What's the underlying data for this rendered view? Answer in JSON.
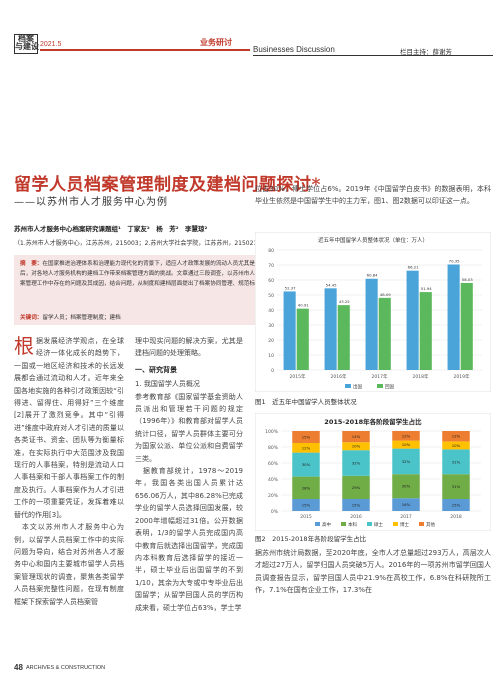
{
  "header": {
    "logo_text": "档案\n与建设",
    "date": "2021.5",
    "column_name": "业务研讨",
    "column_en": "Businesses Discussion",
    "editor": "栏目主持：薛谢芳"
  },
  "article": {
    "title": "留学人员档案管理制度及建档问题探讨*",
    "subtitle": "——以苏州市人才服务中心为例",
    "authors": "苏州市人才服务中心档案研究课题组¹　丁家友²　杨　芳²　李慧琼²",
    "affiliation": "（1.苏州市人才服务中心，江苏苏州，215003；2.苏州大学社会学院，江苏苏州，215021）",
    "abstract_label": "摘　要：",
    "abstract": "在国家推进治理体系和治理能力现代化的背景下，适应人才政策发展的流动人员尤其是留学人员档案管理制度建设相对滞后，对各地人才服务机构的建档工作带来档案管理方面的挑战。文章通过三段调查，以苏州市人才服务中心为例，分析了留学人员档案管理工作中存在的问题及其成因，结合问题，从制度和建档层面提出了档案协同管理、规范标准建设与管理流程优化等对策。",
    "keywords_label": "关键词：",
    "keywords": "留学人员；档案管理制度；建档",
    "col1_dropcap": "根",
    "col1_text": "据发展经济学观点，在全球经济一体化成长的趋势下，一国或一地区经济和技术的长远发展都会通过流动和人才。近年来全国各地实施的各种引才政策因较“引得进、留得住、用得好”三个维度[2]展开了激烈竞争。其中“引得进”维度中政府对人才引进的质量以各类证书、资金、团队等为衡量标准，在实际执行中大范围涉及我国现行的人事档案，特别是流动人口人事档案和干部人事档案工作的制度及执行。人事档案作为人才引进工作的一项重要凭证，发挥着难以替代的作用[3]。\n　本文以苏州市人才服务中心为例，以留学人员档案工作中的实际问题为导向，结合对苏州各人才服务中心和国内主要城市留学人员档案管理现状的调查，聚焦各类留学人员档案完整性问题，在现有制度框架下探索留学人员档案管",
    "col2_text": "理中现实问题的解决方案，尤其是建档问题的处理策略。",
    "section1": "一、研究背景",
    "sub1": "1. 我国留学人员概况",
    "col2_text2": "参考教育部《国家留学基金资助人员派出和管理若干问题的规定（1996年）》和教育部对留学人员统计口径，留学人员群体主要可分为国家公派、单位公派和自费留学三类。\n　据教育部统计，1978～2019年，我国各类出国人员累计达656.06万人，其中86.28%已完成学业的留学人员选择回国发展，较2000年增幅超过31倍。公开数据表明，1/3的留学人员完成国内高中教育后就选择出国留学，完成国内本科教育后选择留学的接近一半，硕士毕业后出国留学的不到1/10，其余为大专或中专毕业后出国留学；从留学回国人员的学历构成来看，硕士学位占63%，学士学",
    "col3_text": "位占30%，博士学位占6%。2019年《中国留学白皮书》的数据表明，本科毕业生依然是中国留学生中的主力军，图1、图2数据可以印证这一点。",
    "fig1_caption": "图1　近五年中国留学人员整体状况",
    "fig2_caption": "图2　2015-2018年各阶段留学生占比",
    "col3b_text": "据苏州市统计局数据，至2020年底，全市人才总量超过293万人，高层次人才超过27万人，留学归国人员突破5万人。2016年的一项苏州市留学回国人员调查报告显示，留学回国人员中21.9%在高校工作，6.8%在科研院所工作，7.1%在国有企业工作，17.3%在"
  },
  "footer": {
    "page": "48",
    "label": "ARCHIVES & CONSTRUCTION"
  },
  "chart_data": [
    {
      "type": "bar",
      "title": "近五年中国留学人员整体状况（单位：万人）",
      "categories": [
        "2015年",
        "2016年",
        "2017年",
        "2018年",
        "2019年"
      ],
      "series": [
        {
          "name": "出国",
          "values": [
            52.37,
            54.45,
            60.84,
            66.21,
            70.35
          ]
        },
        {
          "name": "回国",
          "values": [
            40.91,
            43.25,
            48.09,
            51.94,
            58.03
          ]
        }
      ],
      "ylim": [
        0,
        80
      ],
      "colors": [
        "#4aa4d9",
        "#5cb85c"
      ]
    },
    {
      "type": "bar",
      "title": "2015-2018年各阶段留学生占比",
      "categories": [
        "2015",
        "2016",
        "2017",
        "2018"
      ],
      "stacked": true,
      "series": [
        {
          "name": "高中",
          "values": [
            15,
            15,
            16,
            15
          ]
        },
        {
          "name": "本科",
          "values": [
            28,
            29,
            30,
            31
          ]
        },
        {
          "name": "硕士",
          "values": [
            30,
            32,
            32,
            31
          ]
        },
        {
          "name": "博士",
          "values": [
            12,
            10,
            10,
            10
          ]
        },
        {
          "name": "其他",
          "values": [
            15,
            14,
            12,
            13
          ]
        }
      ],
      "ylim": [
        0,
        100
      ],
      "colors": [
        "#5b9bd5",
        "#70ad47",
        "#4bc4c9",
        "#ffc000",
        "#ed7d31"
      ]
    }
  ]
}
